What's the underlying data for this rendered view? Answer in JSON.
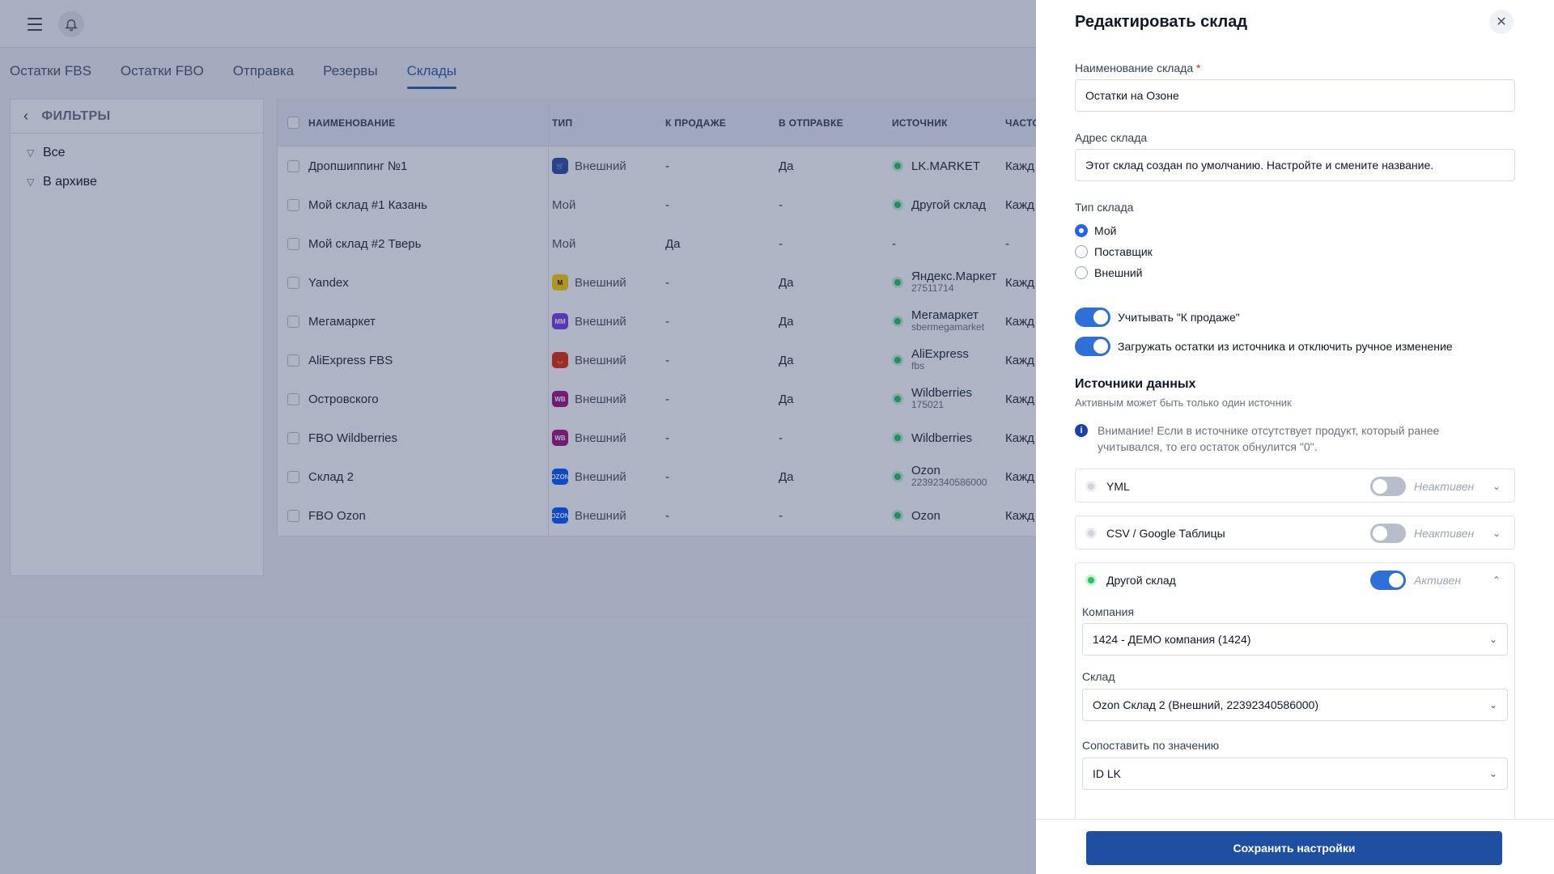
{
  "tabs": [
    "Остатки FBS",
    "Остатки FBO",
    "Отправка",
    "Резервы",
    "Склады"
  ],
  "active_tab": 4,
  "filters": {
    "title": "ФИЛЬТРЫ",
    "items": [
      "Все",
      "В архиве"
    ]
  },
  "table": {
    "headers": [
      "НАИМЕНОВАНИЕ",
      "ТИП",
      "К ПРОДАЖЕ",
      "В ОТПРАВКЕ",
      "ИСТОЧНИК",
      "ЧАСТО"
    ],
    "rows": [
      {
        "name": "Дропшиппинг №1",
        "logo": "lkmarket",
        "type": "Внешний",
        "sale": "-",
        "send": "Да",
        "src": "LK.MARKET",
        "src_sub": "",
        "freq": "Кажд"
      },
      {
        "name": "Мой склад #1 Казань",
        "logo": "",
        "type": "Мой",
        "sale": "-",
        "send": "-",
        "src": "Другой склад",
        "src_sub": "",
        "freq": "Кажд"
      },
      {
        "name": "Мой склад #2 Тверь",
        "logo": "",
        "type": "Мой",
        "sale": "Да",
        "send": "-",
        "src": "-",
        "src_sub": "",
        "freq": "-"
      },
      {
        "name": "Yandex",
        "logo": "yandex",
        "type": "Внешний",
        "sale": "-",
        "send": "Да",
        "src": "Яндекс.Маркет",
        "src_sub": "27511714",
        "freq": "Кажд"
      },
      {
        "name": "Мегамаркет",
        "logo": "megamarket",
        "type": "Внешний",
        "sale": "-",
        "send": "Да",
        "src": "Мегамаркет",
        "src_sub": "sbermegamarket",
        "freq": "Кажд"
      },
      {
        "name": "AliExpress FBS",
        "logo": "aliexpress",
        "type": "Внешний",
        "sale": "-",
        "send": "Да",
        "src": "AliExpress",
        "src_sub": "fbs",
        "freq": "Кажд"
      },
      {
        "name": "Островского",
        "logo": "wb",
        "type": "Внешний",
        "sale": "-",
        "send": "Да",
        "src": "Wildberries",
        "src_sub": "175021",
        "freq": "Кажд"
      },
      {
        "name": "FBO Wildberries",
        "logo": "wb",
        "type": "Внешний",
        "sale": "-",
        "send": "-",
        "src": "Wildberries",
        "src_sub": "",
        "freq": "Кажд"
      },
      {
        "name": "Склад 2",
        "logo": "ozon",
        "type": "Внешний",
        "sale": "-",
        "send": "Да",
        "src": "Ozon",
        "src_sub": "22392340586000",
        "freq": "Кажд"
      },
      {
        "name": "FBO Ozon",
        "logo": "ozon",
        "type": "Внешний",
        "sale": "-",
        "send": "-",
        "src": "Ozon",
        "src_sub": "",
        "freq": "Кажд"
      }
    ]
  },
  "logo_colors": {
    "lkmarket": "#2f4ea8",
    "yandex": "#fcd000",
    "megamarket": "#7b3fe4",
    "aliexpress": "#e62e04",
    "wb": "#a3127f",
    "ozon": "#005bff"
  },
  "logo_text": {
    "lkmarket": "🛒",
    "yandex": "M",
    "megamarket": "ММ",
    "aliexpress": "◡",
    "wb": "WB",
    "ozon": "OZON"
  },
  "panel": {
    "title": "Редактировать склад",
    "name_label": "Наименование склада",
    "required_mark": "*",
    "name_value": "Остатки на Озоне",
    "address_label": "Адрес склада",
    "address_value": "Этот склад создан по умолчанию. Настройте и смените название.",
    "type_label": "Тип склада",
    "type_options": [
      "Мой",
      "Поставщик",
      "Внешний"
    ],
    "type_selected": 0,
    "toggle_sale": "Учитывать \"К продаже\"",
    "toggle_load": "Загружать остатки из источника и отключить ручное изменение",
    "sources_title": "Источники данных",
    "sources_sub": "Активным может быть только один источник",
    "notice": "Внимание! Если в источнике отсутствует продукт, который ранее учитывался, то его остаток обнулится \"0\".",
    "sources": [
      {
        "name": "YML",
        "status": "Неактивен",
        "active": false
      },
      {
        "name": "CSV / Google Таблицы",
        "status": "Неактивен",
        "active": false
      },
      {
        "name": "Другой склад",
        "status": "Активен",
        "active": true
      }
    ],
    "company_label": "Компания",
    "company_value": "1424 - ДЕМО компания (1424)",
    "warehouse_label": "Склад",
    "warehouse_value": "Ozon Склад 2 (Внешний, 22392340586000)",
    "match_label": "Сопоставить по значению",
    "match_value": "ID LK",
    "save_label": "Сохранить настройки"
  }
}
